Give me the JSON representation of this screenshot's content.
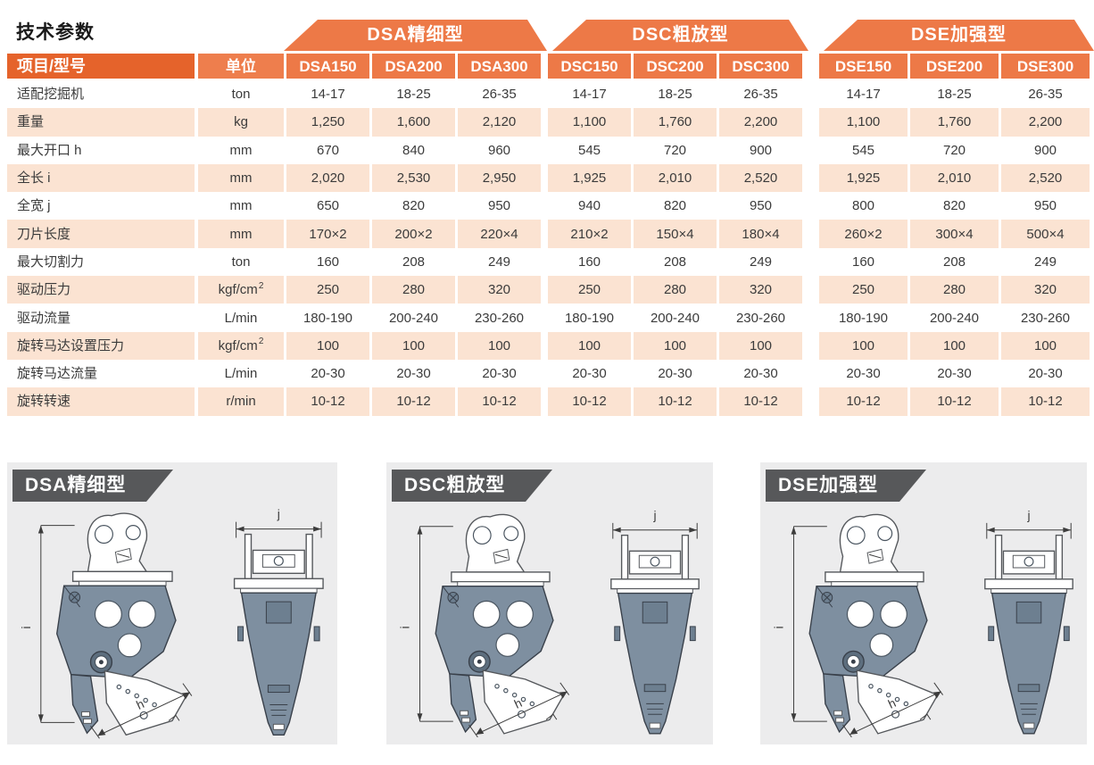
{
  "page": {
    "title": "技术参数"
  },
  "colors": {
    "accent_orange": "#ed7947",
    "deep_orange": "#e5632b",
    "light_orange": "#ee7e4d",
    "row_peach": "#fbe3d2",
    "banner_gray": "#57585a",
    "machine_slate": "#7e8fa0",
    "card_bg": "#ececed"
  },
  "table": {
    "header": {
      "item_model": "项目/型号",
      "unit": "单位"
    },
    "groups": [
      {
        "label": "DSA精细型",
        "models": [
          "DSA150",
          "DSA200",
          "DSA300"
        ]
      },
      {
        "label": "DSC粗放型",
        "models": [
          "DSC150",
          "DSC200",
          "DSC300"
        ]
      },
      {
        "label": "DSE加强型",
        "models": [
          "DSE150",
          "DSE200",
          "DSE300"
        ]
      }
    ],
    "rows": [
      {
        "label": "适配挖掘机",
        "unit": "ton",
        "values": [
          "14-17",
          "18-25",
          "26-35",
          "14-17",
          "18-25",
          "26-35",
          "14-17",
          "18-25",
          "26-35"
        ]
      },
      {
        "label": "重量",
        "unit": "kg",
        "values": [
          "1,250",
          "1,600",
          "2,120",
          "1,100",
          "1,760",
          "2,200",
          "1,100",
          "1,760",
          "2,200"
        ]
      },
      {
        "label": "最大开口 h",
        "unit": "mm",
        "values": [
          "670",
          "840",
          "960",
          "545",
          "720",
          "900",
          "545",
          "720",
          "900"
        ]
      },
      {
        "label": "全长 i",
        "unit": "mm",
        "values": [
          "2,020",
          "2,530",
          "2,950",
          "1,925",
          "2,010",
          "2,520",
          "1,925",
          "2,010",
          "2,520"
        ]
      },
      {
        "label": "全宽 j",
        "unit": "mm",
        "values": [
          "650",
          "820",
          "950",
          "940",
          "820",
          "950",
          "800",
          "820",
          "950"
        ]
      },
      {
        "label": "刀片长度",
        "unit": "mm",
        "values": [
          "170×2",
          "200×2",
          "220×4",
          "210×2",
          "150×4",
          "180×4",
          "260×2",
          "300×4",
          "500×4"
        ]
      },
      {
        "label": "最大切割力",
        "unit": "ton",
        "values": [
          "160",
          "208",
          "249",
          "160",
          "208",
          "249",
          "160",
          "208",
          "249"
        ]
      },
      {
        "label": "驱动压力",
        "unit": "kgf/cm",
        "unit_sup": "2",
        "values": [
          "250",
          "280",
          "320",
          "250",
          "280",
          "320",
          "250",
          "280",
          "320"
        ]
      },
      {
        "label": "驱动流量",
        "unit": "L/min",
        "values": [
          "180-190",
          "200-240",
          "230-260",
          "180-190",
          "200-240",
          "230-260",
          "180-190",
          "200-240",
          "230-260"
        ]
      },
      {
        "label": "旋转马达设置压力",
        "unit": "kgf/cm",
        "unit_sup": "2",
        "values": [
          "100",
          "100",
          "100",
          "100",
          "100",
          "100",
          "100",
          "100",
          "100"
        ]
      },
      {
        "label": "旋转马达流量",
        "unit": "L/min",
        "values": [
          "20-30",
          "20-30",
          "20-30",
          "20-30",
          "20-30",
          "20-30",
          "20-30",
          "20-30",
          "20-30"
        ]
      },
      {
        "label": "旋转转速",
        "unit": "r/min",
        "values": [
          "10-12",
          "10-12",
          "10-12",
          "10-12",
          "10-12",
          "10-12",
          "10-12",
          "10-12",
          "10-12"
        ]
      }
    ]
  },
  "diagrams": {
    "dim_labels": {
      "length": "i",
      "opening": "h",
      "width": "j"
    },
    "cards": [
      {
        "label": "DSA精细型"
      },
      {
        "label": "DSC粗放型"
      },
      {
        "label": "DSE加强型"
      }
    ]
  }
}
